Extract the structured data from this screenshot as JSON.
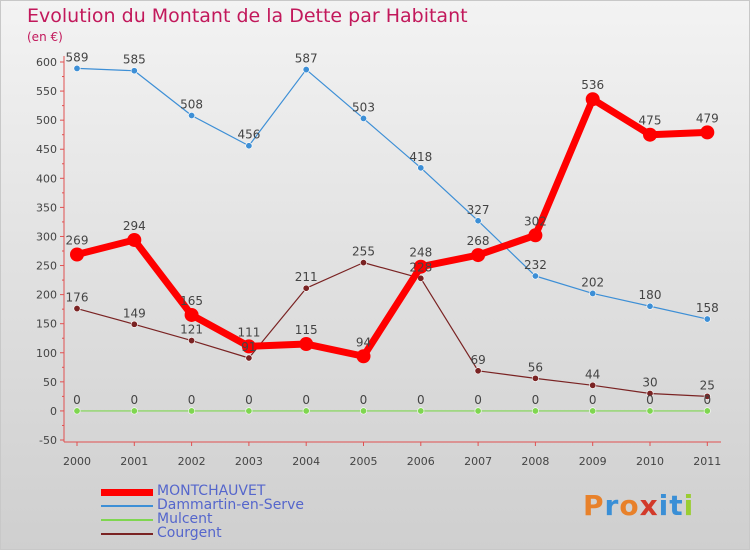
{
  "header": {
    "title": "Evolution du Montant de la Dette par Habitant",
    "unit": "(en €)"
  },
  "logo": {
    "text": "Proxiti",
    "colors": [
      "#e8812a",
      "#3a8fd6",
      "#e8812a",
      "#d23a2a",
      "#3a8fd6",
      "#3a8fd6",
      "#9acd32"
    ]
  },
  "chart_data": {
    "type": "line",
    "title": "Evolution du Montant de la Dette par Habitant",
    "ylabel": "(en €)",
    "xlabel": "",
    "x": [
      "2000",
      "2001",
      "2002",
      "2003",
      "2004",
      "2005",
      "2006",
      "2007",
      "2008",
      "2009",
      "2010",
      "2011"
    ],
    "ylim": [
      -50,
      600
    ],
    "yticks": [
      -50,
      0,
      50,
      100,
      150,
      200,
      250,
      300,
      350,
      400,
      450,
      500,
      550,
      600
    ],
    "grid": false,
    "legend_position": "bottom-left",
    "series": [
      {
        "name": "MONTCHAUVET",
        "color": "#ff0000",
        "values": [
          269,
          294,
          165,
          111,
          115,
          94,
          248,
          268,
          302,
          536,
          475,
          479
        ]
      },
      {
        "name": "Dammartin-en-Serve",
        "color": "#3d8fd6",
        "values": [
          589,
          585,
          508,
          456,
          587,
          503,
          418,
          327,
          232,
          202,
          180,
          158
        ]
      },
      {
        "name": "Mulcent",
        "color": "#7fd650",
        "values": [
          0,
          0,
          0,
          0,
          0,
          0,
          0,
          0,
          0,
          0,
          0,
          0
        ]
      },
      {
        "name": "Courgent",
        "color": "#7a2323",
        "values": [
          176,
          149,
          121,
          91,
          211,
          255,
          228,
          69,
          56,
          44,
          30,
          25
        ]
      }
    ]
  }
}
